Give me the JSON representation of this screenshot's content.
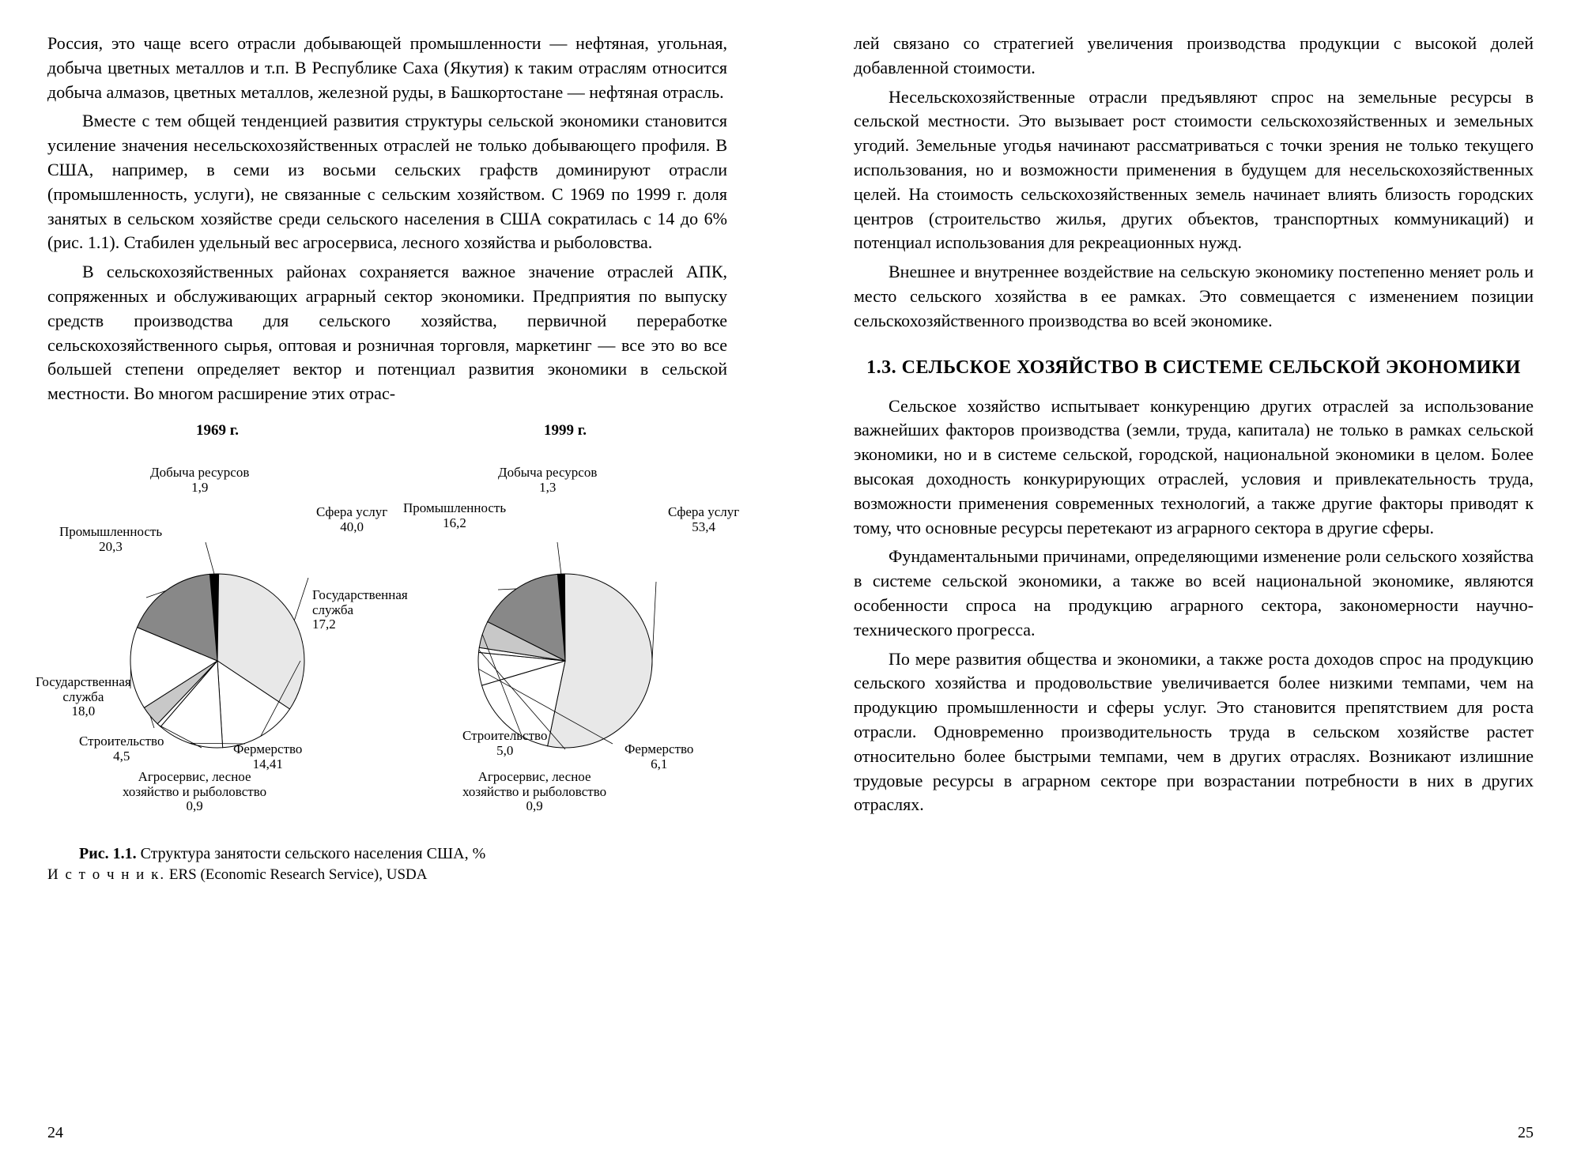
{
  "left": {
    "p1": "Россия, это чаще всего отрасли добывающей промышленности — нефтяная, угольная, добыча цветных металлов и т.п. В Республике Саха (Якутия) к таким отраслям относится добыча алмазов, цветных металлов, железной руды, в Башкортостане — нефтяная отрасль.",
    "p2": "Вместе с тем общей тенденцией развития структуры сельской экономики становится усиление значения несельскохозяйственных отраслей не только добывающего профиля. В США, например, в семи из восьми сельских графств доминируют отрасли (промышленность, услуги), не связанные с сельским хозяйством. С 1969 по 1999 г. доля занятых в сельском хозяйстве среди сельского населения в США сократилась с 14 до 6% (рис. 1.1). Стабилен удельный вес агросервиса, лесного хозяйства и рыболовства.",
    "p3": "В сельскохозяйственных районах сохраняется важное значение отраслей АПК, сопряженных и обслуживающих аграрный сектор экономики. Предприятия по выпуску средств производства для сельского хозяйства, первичной переработке сельскохозяйственного сырья, оптовая и розничная торговля, маркетинг — все это во все большей степени определяет вектор и потенциал развития экономики в сельской местности. Во многом расширение этих отрас-",
    "caption_bold": "Рис. 1.1.",
    "caption_text": " Структура занятости сельского населения США, %",
    "source_label": "И с т о ч н и к.",
    "source_text": " ERS (Economic Research Service), USDA",
    "page_num": "24"
  },
  "right": {
    "p1": "лей связано со стратегией увеличения производства продукции с высокой долей добавленной стоимости.",
    "p2": "Несельскохозяйственные отрасли предъявляют спрос на земельные ресурсы в сельской местности. Это вызывает рост стоимости сельскохозяйственных и земельных угодий. Земельные угодья начинают рассматриваться с точки зрения не только текущего использования, но и возможности применения в будущем для несельскохозяйственных целей. На стоимость сельскохозяйственных земель начинает влиять близость городских центров (строительство жилья, других объектов, транспортных коммуникаций) и потенциал использования для рекреационных нужд.",
    "p3": "Внешнее и внутреннее воздействие на сельскую экономику постепенно меняет роль и место сельского хозяйства в ее рамках. Это совмещается с изменением позиции сельскохозяйственного производства во всей экономике.",
    "h2": "1.3. СЕЛЬСКОЕ ХОЗЯЙСТВО В СИСТЕМЕ СЕЛЬСКОЙ ЭКОНОМИКИ",
    "p4": "Сельское хозяйство испытывает конкуренцию других отраслей за использование важнейших факторов производства (земли, труда, капитала) не только в рамках сельской экономики, но и в системе сельской, городской, национальной экономики в целом. Более высокая доходность конкурирующих отраслей, условия и привлекательность труда, возможности применения современных технологий, а также другие факторы приводят к тому, что основные ресурсы перетекают из аграрного сектора в другие сферы.",
    "p5": "Фундаментальными причинами, определяющими изменение роли сельского хозяйства в системе сельской экономики, а также во всей национальной экономике, являются особенности спроса на продукцию аграрного сектора, закономерности научно-технического прогресса.",
    "p6": "По мере развития общества и экономики, а также роста доходов спрос на продукцию сельского хозяйства и продовольствие увеличивается более низкими темпами, чем на продукцию промышленности и сферы услуг. Это становится препятствием для роста отрасли. Одновременно производительность труда в сельском хозяйстве растет относительно более быстрыми темпами, чем в других отраслях. Возникают излишние трудовые ресурсы в аграрном секторе при возрастании потребности в них в других отраслях.",
    "page_num": "25"
  },
  "charts": {
    "radius": 110,
    "stroke": "#000000",
    "colors": {
      "resources": "#000000",
      "services": "#e8e8e8",
      "gov": "#ffffff",
      "farming": "#ffffff",
      "agro": "#ffffff",
      "construction": "#c8c8c8",
      "govserv": "#ffffff",
      "industry": "#888888"
    },
    "chart1969": {
      "year": "1969 г.",
      "slices": [
        {
          "key": "resources",
          "value": 1.9,
          "label": "Добыча ресурсов",
          "num": "1,9"
        },
        {
          "key": "services",
          "value": 40.0,
          "label": "Сфера услуг",
          "num": "40,0"
        },
        {
          "key": "gov",
          "value": 17.2,
          "label": "Государственная\nслужба",
          "num": "17,2"
        },
        {
          "key": "farming",
          "value": 14.41,
          "label": "Фермерство",
          "num": "14,41"
        },
        {
          "key": "agro",
          "value": 0.9,
          "label": "Агросервис, лесное\nхозяйство и рыболовство",
          "num": "0,9"
        },
        {
          "key": "construction",
          "value": 4.5,
          "label": "Строительство",
          "num": "4,5"
        },
        {
          "key": "govserv",
          "value": 18.0,
          "label": "Государственная\nслужба",
          "num": "18,0"
        },
        {
          "key": "industry",
          "value": 20.3,
          "label": "Промышленность",
          "num": "20,3"
        }
      ]
    },
    "chart1999": {
      "year": "1999 г.",
      "slices": [
        {
          "key": "resources",
          "value": 1.3,
          "label": "Добыча ресурсов",
          "num": "1,3"
        },
        {
          "key": "services",
          "value": 53.4,
          "label": "Сфера услуг",
          "num": "53,4"
        },
        {
          "key": "gov",
          "value": 17.2,
          "label": null,
          "num": null
        },
        {
          "key": "farming",
          "value": 6.1,
          "label": "Фермерство",
          "num": "6,1"
        },
        {
          "key": "agro",
          "value": 0.9,
          "label": "Агросервис, лесное\nхозяйство и рыболовство",
          "num": "0,9"
        },
        {
          "key": "construction",
          "value": 5.0,
          "label": "Строительство",
          "num": "5,0"
        },
        {
          "key": "industry",
          "value": 16.2,
          "label": "Промышленность",
          "num": "16,2"
        }
      ]
    }
  }
}
